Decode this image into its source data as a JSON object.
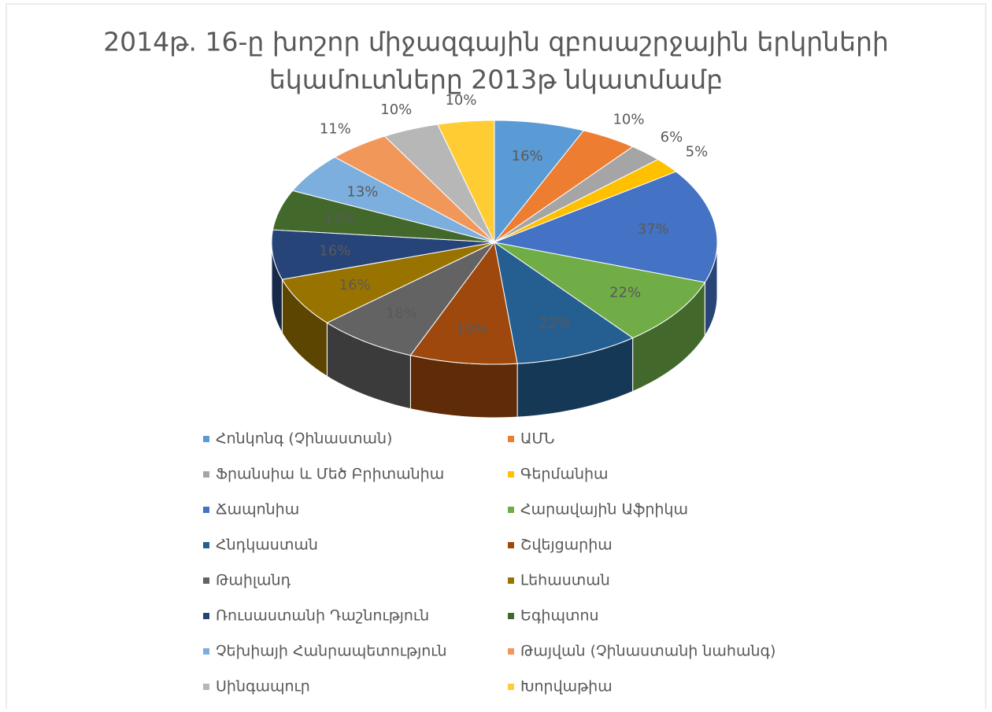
{
  "chart_data": {
    "type": "pie3d",
    "title": [
      "2014թ. 16-ը խոշոր միջազգային զբոսաշրջային երկրների",
      "եկամուտները 2013թ նկատմամբ"
    ],
    "categories": [
      "Հոնկոնգ (Չինաստան)",
      "ԱՄՆ",
      "Ֆրանսիա և Մեծ Բրիտանիա",
      "Գերմանիա",
      "Ճապոնիա",
      "Հարավային Աֆրիկա",
      "Հնդկաստան",
      "Շվեյցարիա",
      "Թաիլանդ",
      "Լեհաստան",
      "Ռուսաստանի Դաշնություն",
      "Եգիպտոս",
      "Չեխիայի Հանրապետություն",
      "Թայվան (Չինաստանի նահանգ)",
      "Սինգապուր",
      "Խորվաթիա"
    ],
    "values": [
      16,
      10,
      6,
      5,
      37,
      22,
      22,
      19,
      18,
      16,
      16,
      13,
      13,
      11,
      10,
      10
    ],
    "value_labels": [
      "16%",
      "10%",
      "6%",
      "5%",
      "37%",
      "22%",
      "22%",
      "19%",
      "18%",
      "16%",
      "16%",
      "13%",
      "13%",
      "11%",
      "10%",
      "10%"
    ],
    "colors": [
      "#5b9bd5",
      "#ed7d31",
      "#a5a5a5",
      "#ffc000",
      "#4472c4",
      "#70ad47",
      "#255e91",
      "#9e480e",
      "#636363",
      "#997300",
      "#264478",
      "#43682b",
      "#7cafdd",
      "#f1975a",
      "#b7b7b7",
      "#ffcd33"
    ],
    "legend": "bottom"
  }
}
